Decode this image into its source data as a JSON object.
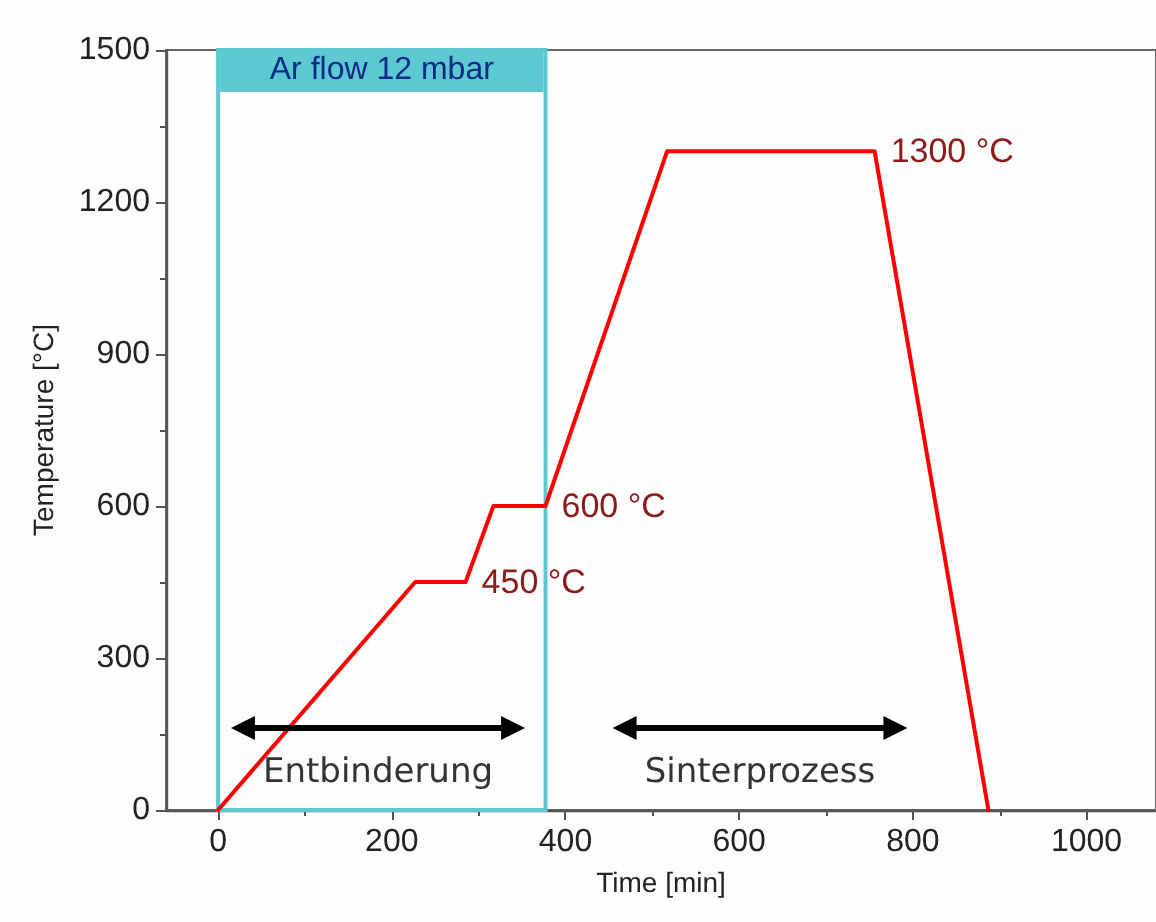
{
  "chart_data": {
    "type": "line",
    "xlabel": "Time [min]",
    "ylabel": "Temperature [°C]",
    "x": [
      0,
      227,
      285,
      317,
      377,
      517,
      756,
      887
    ],
    "series": [
      {
        "color": "#ff0000",
        "values": [
          0,
          450,
          450,
          600,
          600,
          1300,
          1300,
          0
        ]
      }
    ],
    "xlim": [
      -60,
      1080
    ],
    "xticks": [
      0,
      200,
      400,
      600,
      800,
      1000
    ],
    "ylim": [
      0,
      1500
    ],
    "yticks": [
      0,
      300,
      600,
      900,
      1200,
      1500
    ],
    "bands": [
      {
        "axis": "x",
        "from": 0,
        "to": 377,
        "label": "Ar flow 12 mbar",
        "color": "#5cc9d1"
      }
    ],
    "annotations": [
      {
        "text": "450 °C",
        "x": 285,
        "y": 450
      },
      {
        "text": "600 °C",
        "x": 377,
        "y": 600
      },
      {
        "text": "1300 °C",
        "x": 756,
        "y": 1300
      },
      "Entbinderung",
      "Sinterprozess"
    ],
    "grid": false,
    "marker": "none",
    "line_style": "solid"
  }
}
